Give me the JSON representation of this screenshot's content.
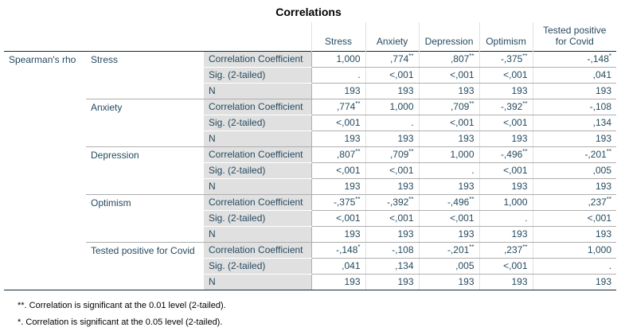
{
  "title": "Correlations",
  "columns": [
    "Stress",
    "Anxiety",
    "Depression",
    "Optimism",
    "Tested positive for Covid"
  ],
  "method_label": "Spearman's rho",
  "stat_labels": [
    "Correlation Coefficient",
    "Sig. (2-tailed)",
    "N"
  ],
  "groups": [
    {
      "variable": "Stress",
      "coef": [
        [
          "1,000",
          ""
        ],
        [
          ",774",
          "**"
        ],
        [
          ",807",
          "**"
        ],
        [
          "-,375",
          "**"
        ],
        [
          "-,148",
          "*"
        ]
      ],
      "sig": [
        ".",
        "<,001",
        "<,001",
        "<,001",
        ",041"
      ],
      "n": [
        "193",
        "193",
        "193",
        "193",
        "193"
      ]
    },
    {
      "variable": "Anxiety",
      "coef": [
        [
          ",774",
          "**"
        ],
        [
          "1,000",
          ""
        ],
        [
          ",709",
          "**"
        ],
        [
          "-,392",
          "**"
        ],
        [
          "-,108",
          ""
        ]
      ],
      "sig": [
        "<,001",
        ".",
        "<,001",
        "<,001",
        ",134"
      ],
      "n": [
        "193",
        "193",
        "193",
        "193",
        "193"
      ]
    },
    {
      "variable": "Depression",
      "coef": [
        [
          ",807",
          "**"
        ],
        [
          ",709",
          "**"
        ],
        [
          "1,000",
          ""
        ],
        [
          "-,496",
          "**"
        ],
        [
          "-,201",
          "**"
        ]
      ],
      "sig": [
        "<,001",
        "<,001",
        ".",
        "<,001",
        ",005"
      ],
      "n": [
        "193",
        "193",
        "193",
        "193",
        "193"
      ]
    },
    {
      "variable": "Optimism",
      "coef": [
        [
          "-,375",
          "**"
        ],
        [
          "-,392",
          "**"
        ],
        [
          "-,496",
          "**"
        ],
        [
          "1,000",
          ""
        ],
        [
          ",237",
          "**"
        ]
      ],
      "sig": [
        "<,001",
        "<,001",
        "<,001",
        ".",
        "<,001"
      ],
      "n": [
        "193",
        "193",
        "193",
        "193",
        "193"
      ]
    },
    {
      "variable": "Tested positive for Covid",
      "coef": [
        [
          "-,148",
          "*"
        ],
        [
          "-,108",
          ""
        ],
        [
          "-,201",
          "**"
        ],
        [
          ",237",
          "**"
        ],
        [
          "1,000",
          ""
        ]
      ],
      "sig": [
        ",041",
        ",134",
        ",005",
        "<,001",
        "."
      ],
      "n": [
        "193",
        "193",
        "193",
        "193",
        "193"
      ]
    }
  ],
  "footnotes": [
    "**. Correlation is significant at the 0.01 level (2-tailed).",
    "*. Correlation is significant at the 0.05 level (2-tailed)."
  ]
}
